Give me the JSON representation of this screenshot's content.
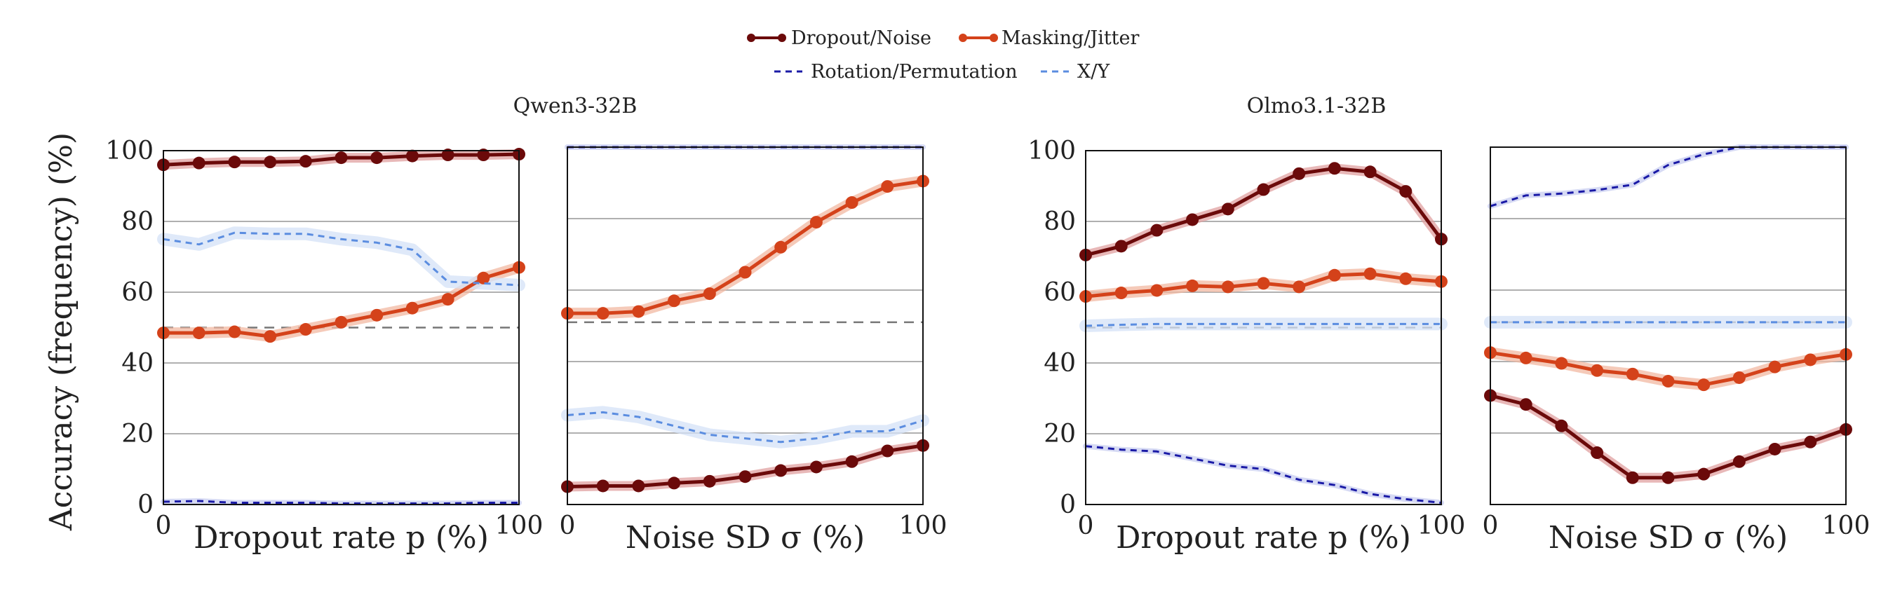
{
  "legend": [
    {
      "label": "Dropout/Noise",
      "color": "#6b0a0a",
      "style": "solid-marker"
    },
    {
      "label": "Masking/Jitter",
      "color": "#d4421a",
      "style": "solid-marker"
    },
    {
      "label": "Rotation/Permutation",
      "color": "#1a1aa6",
      "style": "dashed"
    },
    {
      "label": "X/Y",
      "color": "#5b8de0",
      "style": "dashed"
    }
  ],
  "y_axis_label": "Accuracy (frequency) (%)",
  "chart_data": [
    {
      "type": "line",
      "model": "Qwen3-32B",
      "title": "Qwen3-32B",
      "xlabel": "Dropout rate p (%)",
      "xlim": [
        0,
        100
      ],
      "ylim": [
        0,
        100
      ],
      "x_ticks": [
        "0",
        "100"
      ],
      "y_ticks": [
        "0",
        "20",
        "40",
        "60",
        "80",
        "100"
      ],
      "grid": true,
      "chance_line": 50,
      "x": [
        0,
        10,
        20,
        30,
        40,
        50,
        60,
        70,
        80,
        90,
        100
      ],
      "series": [
        {
          "name": "Dropout/Noise",
          "values": [
            96,
            96.5,
            96.8,
            96.8,
            97,
            98,
            98,
            98.5,
            98.8,
            98.8,
            99
          ]
        },
        {
          "name": "Masking/Jitter",
          "values": [
            48.5,
            48.5,
            48.8,
            47.5,
            49.5,
            51.5,
            53.5,
            55.5,
            58,
            64,
            67
          ]
        },
        {
          "name": "Rotation/Permutation",
          "values": [
            0.8,
            1,
            0.5,
            0.5,
            0.5,
            0.3,
            0.3,
            0.3,
            0.3,
            0.5,
            0.5
          ]
        },
        {
          "name": "X/Y",
          "values": [
            75,
            73.5,
            76.8,
            76.5,
            76.5,
            75,
            74,
            72,
            63,
            62.5,
            62
          ]
        }
      ]
    },
    {
      "type": "line",
      "model": "Qwen3-32B",
      "xlabel": "Noise SD σ (%)",
      "xlim": [
        0,
        100
      ],
      "ylim": [
        0,
        100
      ],
      "x_ticks": [
        "0",
        "100"
      ],
      "y_ticks": [],
      "grid": true,
      "chance_line": 51,
      "x": [
        0,
        10,
        20,
        30,
        40,
        50,
        60,
        70,
        80,
        90,
        100
      ],
      "series": [
        {
          "name": "Dropout/Noise",
          "values": [
            5,
            5.2,
            5.2,
            6,
            6.5,
            7.8,
            9.5,
            10.5,
            12,
            15,
            16.5
          ]
        },
        {
          "name": "Masking/Jitter",
          "values": [
            53.5,
            53.5,
            54,
            57,
            59,
            65,
            72,
            79,
            84.5,
            89,
            90.5
          ]
        },
        {
          "name": "Rotation/Permutation",
          "values": [
            100,
            100,
            100,
            100,
            100,
            100,
            100,
            100,
            100,
            100,
            100
          ]
        },
        {
          "name": "X/Y",
          "values": [
            25,
            25.8,
            24.5,
            22,
            19.5,
            18.5,
            17.5,
            18.5,
            20.5,
            20.5,
            23.5
          ]
        }
      ]
    },
    {
      "type": "line",
      "model": "Olmo3.1-32B",
      "title": "Olmo3.1-32B",
      "xlabel": "Dropout rate p (%)",
      "xlim": [
        0,
        100
      ],
      "ylim": [
        0,
        100
      ],
      "x_ticks": [
        "0",
        "100"
      ],
      "y_ticks": [
        "0",
        "20",
        "40",
        "60",
        "80",
        "100"
      ],
      "grid": true,
      "chance_line": 50,
      "x": [
        0,
        10,
        20,
        30,
        40,
        50,
        60,
        70,
        80,
        90,
        100
      ],
      "series": [
        {
          "name": "Dropout/Noise",
          "values": [
            70.5,
            73,
            77.5,
            80.5,
            83.5,
            89,
            93.5,
            95,
            94,
            88.5,
            75
          ]
        },
        {
          "name": "Masking/Jitter",
          "values": [
            58.8,
            59.8,
            60.5,
            61.8,
            61.5,
            62.5,
            61.5,
            64.8,
            65.2,
            63.8,
            63
          ]
        },
        {
          "name": "Rotation/Permutation",
          "values": [
            16.5,
            15.5,
            15,
            13,
            11,
            10,
            7,
            5.5,
            3,
            1.5,
            0.5
          ]
        },
        {
          "name": "X/Y",
          "values": [
            50.5,
            50.8,
            51,
            51,
            51,
            51,
            51,
            51,
            51,
            51,
            51
          ]
        }
      ]
    },
    {
      "type": "line",
      "model": "Olmo3.1-32B",
      "xlabel": "Noise SD σ (%)",
      "xlim": [
        0,
        100
      ],
      "ylim": [
        0,
        100
      ],
      "x_ticks": [
        "0",
        "100"
      ],
      "y_ticks": [],
      "grid": true,
      "chance_line": 51,
      "x": [
        0,
        10,
        20,
        30,
        40,
        50,
        60,
        70,
        80,
        90,
        100
      ],
      "series": [
        {
          "name": "Dropout/Noise",
          "values": [
            30.5,
            28,
            22,
            14.5,
            7.5,
            7.5,
            8.5,
            12,
            15.5,
            17.5,
            21
          ]
        },
        {
          "name": "Masking/Jitter",
          "values": [
            42.5,
            41,
            39.5,
            37.5,
            36.5,
            34.5,
            33.5,
            35.5,
            38.5,
            40.5,
            42
          ]
        },
        {
          "name": "Rotation/Permutation",
          "values": [
            83.5,
            86.5,
            87,
            88,
            89.5,
            95,
            98,
            100,
            100,
            100,
            100
          ]
        },
        {
          "name": "X/Y",
          "values": [
            51,
            51,
            51,
            51,
            51,
            51,
            51,
            51,
            51,
            51,
            51
          ]
        }
      ]
    }
  ]
}
